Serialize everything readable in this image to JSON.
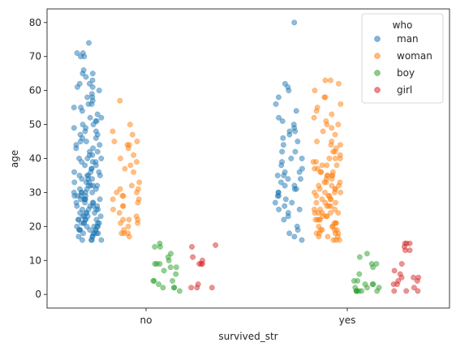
{
  "chart_data": {
    "type": "scatter",
    "subtype": "strip-plot",
    "title": "",
    "xlabel": "survived_str",
    "ylabel": "age",
    "categories": [
      "no",
      "yes"
    ],
    "ylim": [
      -4,
      84
    ],
    "yticks": [
      0,
      10,
      20,
      30,
      40,
      50,
      60,
      70,
      80
    ],
    "grid": false,
    "legend": {
      "title": "who",
      "placement": "top-right"
    },
    "series": [
      {
        "name": "man",
        "color": "#1f77b4",
        "points": {
          "no": [
            16,
            16,
            16,
            16,
            17,
            17,
            17,
            18,
            18,
            18,
            18,
            18,
            19,
            19,
            19,
            19,
            19,
            19,
            20,
            20,
            20,
            20,
            20,
            21,
            21,
            21,
            21,
            21,
            22,
            22,
            22,
            22,
            22,
            23,
            23,
            23,
            23,
            24,
            24,
            24,
            24,
            25,
            25,
            25,
            25,
            26,
            26,
            26,
            26,
            27,
            27,
            27,
            27,
            28,
            28,
            28,
            28,
            28,
            29,
            29,
            29,
            29,
            30,
            30,
            30,
            30,
            30,
            31,
            31,
            31,
            32,
            32,
            32,
            32,
            33,
            33,
            33,
            34,
            34,
            34,
            35,
            35,
            35,
            35,
            36,
            36,
            36,
            37,
            37,
            38,
            38,
            39,
            39,
            39,
            40,
            40,
            40,
            41,
            41,
            42,
            42,
            43,
            43,
            44,
            44,
            45,
            45,
            46,
            46,
            47,
            47,
            48,
            48,
            49,
            49,
            50,
            50,
            51,
            51,
            52,
            52,
            53,
            54,
            55,
            55,
            56,
            56,
            57,
            58,
            58,
            59,
            60,
            61,
            61,
            62,
            62,
            63,
            64,
            65,
            65,
            66,
            70,
            70,
            71,
            71,
            74
          ],
          "yes": [
            16,
            17,
            18,
            19,
            20,
            22,
            23,
            24,
            25,
            25,
            26,
            27,
            27,
            28,
            29,
            29,
            30,
            30,
            31,
            31,
            32,
            32,
            33,
            34,
            34,
            35,
            35,
            36,
            36,
            37,
            38,
            39,
            40,
            40,
            42,
            42,
            44,
            45,
            46,
            47,
            48,
            48,
            49,
            50,
            51,
            52,
            54,
            56,
            58,
            60,
            61,
            62,
            80
          ]
        }
      },
      {
        "name": "woman",
        "color": "#ff7f0e",
        "points": {
          "no": [
            17,
            18,
            18,
            18,
            19,
            20,
            21,
            21,
            22,
            22,
            22,
            23,
            24,
            25,
            26,
            26,
            27,
            28,
            28,
            29,
            29,
            30,
            30,
            31,
            31,
            32,
            33,
            36,
            37,
            38,
            39,
            40,
            41,
            43,
            44,
            44,
            45,
            45,
            47,
            48,
            50,
            57
          ],
          "yes": [
            16,
            16,
            16,
            17,
            17,
            17,
            18,
            18,
            18,
            18,
            19,
            19,
            19,
            19,
            20,
            20,
            20,
            21,
            21,
            21,
            22,
            22,
            22,
            22,
            23,
            23,
            23,
            24,
            24,
            24,
            24,
            24,
            25,
            25,
            25,
            26,
            26,
            26,
            27,
            27,
            27,
            28,
            28,
            28,
            29,
            29,
            29,
            30,
            30,
            30,
            30,
            31,
            31,
            31,
            32,
            32,
            32,
            33,
            33,
            33,
            34,
            34,
            35,
            35,
            35,
            35,
            36,
            36,
            36,
            37,
            37,
            38,
            38,
            38,
            39,
            39,
            40,
            40,
            40,
            41,
            42,
            42,
            43,
            44,
            44,
            45,
            45,
            47,
            48,
            49,
            50,
            50,
            51,
            52,
            53,
            54,
            55,
            56,
            58,
            58,
            60,
            62,
            63,
            63
          ]
        }
      },
      {
        "name": "boy",
        "color": "#2ca02c",
        "points": {
          "no": [
            1,
            2,
            2,
            2,
            3,
            4,
            4,
            4,
            6,
            7,
            8,
            8,
            9,
            9,
            9,
            10,
            11,
            12,
            14,
            14,
            15
          ],
          "yes": [
            1,
            1,
            1,
            1,
            1,
            1,
            2,
            2,
            2,
            3,
            3,
            3,
            4,
            4,
            6,
            8,
            9,
            9,
            11,
            12
          ]
        }
      },
      {
        "name": "girl",
        "color": "#d62728",
        "points": {
          "no": [
            2,
            2,
            2,
            3,
            9,
            9,
            9,
            10,
            11,
            14,
            14.5
          ],
          "yes": [
            1,
            1,
            1,
            2,
            3,
            3,
            4,
            4,
            5,
            5,
            5,
            6,
            7,
            9,
            13,
            13,
            14,
            15,
            15,
            15
          ]
        }
      }
    ]
  }
}
